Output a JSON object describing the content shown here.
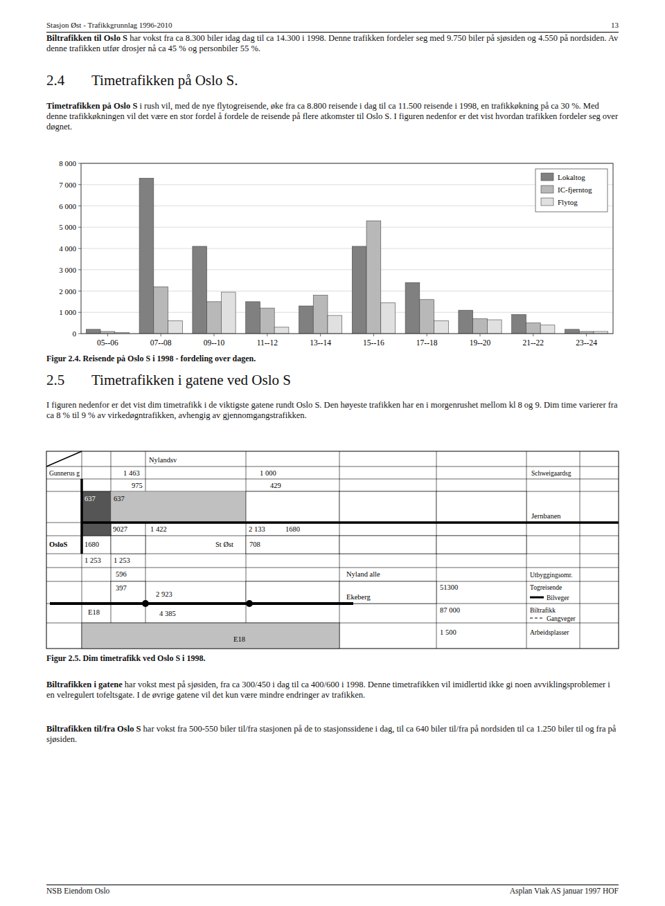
{
  "header_left": "Stasjon Øst  -  Trafikkgrunnlag 1996-2010",
  "header_right": "13",
  "paragraph_1": {
    "lead": "Biltrafikken til Oslo S",
    "text": " har vokst fra ca 8.300 biler idag dag til ca 14.300 i 1998. Denne trafikken fordeler seg med 9.750 biler på sjøsiden og 4.550 på nordsiden.  Av denne trafikken utfør drosjer nå ca 45 % og personbiler 55 %."
  },
  "heading_2_4": {
    "number": "2.4",
    "title": "Timetrafikken på Oslo S."
  },
  "paragraph_2": {
    "lead": "Timetrafikken på Oslo S",
    "text": " i rush vil, med de nye flytogreisende, øke fra ca 8.800 reisende i dag til ca 11.500 reisende i 1998, en trafikkøkning på ca 30 %. Med denne trafikkøkningen vil det være en stor fordel å fordele de reisende på flere atkomster til Oslo S.  I figuren nedenfor er det vist hvordan trafikken fordeler seg over døgnet."
  },
  "chart_data": {
    "type": "bar",
    "title": "Figur 2.4.  Reisende på Oslo S i 1998 - fordeling over dagen.",
    "categories": [
      "05--06",
      "07--08",
      "09--10",
      "11--12",
      "13--14",
      "15--16",
      "17--18",
      "19--20",
      "21--22",
      "23--24"
    ],
    "series": [
      {
        "name": "Lokaltog",
        "color": "#808080",
        "values": [
          200,
          7300,
          4100,
          1500,
          1300,
          4100,
          2400,
          1100,
          900,
          200
        ]
      },
      {
        "name": "IC-fjerntog",
        "color": "#b8b8b8",
        "values": [
          100,
          2200,
          1500,
          1200,
          1800,
          5300,
          1600,
          700,
          500,
          100
        ]
      },
      {
        "name": "Flytog",
        "color": "#e0e0e0",
        "values": [
          50,
          600,
          1950,
          300,
          850,
          1450,
          600,
          650,
          400,
          100
        ]
      }
    ],
    "ylim": [
      0,
      8000
    ],
    "yticks": [
      0,
      {
        "value": 1000,
        "label": "1 000"
      },
      {
        "value": 2000,
        "label": "2 000"
      },
      {
        "value": 3000,
        "label": "3 000"
      },
      {
        "value": 4000,
        "label": "4 000"
      },
      {
        "value": 5000,
        "label": "5 000"
      },
      {
        "value": 6000,
        "label": "6 000"
      },
      {
        "value": 7000,
        "label": "7 000"
      },
      {
        "value": 8000,
        "label": "8 000"
      }
    ],
    "grid": true,
    "legend": "upper right"
  },
  "heading_2_5": {
    "number": "2.5",
    "title": "Timetrafikken i gatene ved Oslo S"
  },
  "paragraph_3": {
    "text": "I figuren nedenfor er det vist dim timetrafikk i de viktigste gatene rundt Oslo S.  Den høyeste trafikken har en i morgenrushet mellom kl 8 og 9.  Dim time varierer fra ca 8 % til 9 % av virkedøgntrafikken, avhengig av gjennomgangstrafikken."
  },
  "figure_2_5": {
    "caption": "Figur 2.5.  Dim timetrafikk ved Oslo S i 1998.",
    "labels": {
      "nylandsv": "Nylandsv",
      "gunnerus": "Gunnerus g",
      "v1463": "1 463",
      "v1000": "1 000",
      "schweigaard": "Schweigaardsg",
      "v975": "975",
      "v429": "429",
      "v637a": "637",
      "v637b": "637",
      "v9027": "9027",
      "v1422": "1 422",
      "v2133": "2 133",
      "v1680a": "1680",
      "jernbanen": "Jernbanen",
      "oslos": "OsloS",
      "v1680b": "1680",
      "st_ost": "St Øst",
      "v708": "708",
      "v1253a": "1 253",
      "v1253b": "1 253",
      "v596": "596",
      "nyland_alle": "Nyland alle",
      "utbygg": "Utbyggingsomr.",
      "v51300": "51300",
      "togreisende": "Togreisende",
      "bilveger": "Bilveger",
      "v397": "397",
      "v2923": "2 923",
      "ekeberg": "Ekeberg",
      "v87000": "87 000",
      "biltrafikk": "Biltrafikk",
      "e18a": "E18",
      "v4385": "4 385",
      "gangveger": "Gangveger",
      "v1500": "1 500",
      "arbeidsplasser": "Arbeidsplasser",
      "e18b": "E18"
    }
  },
  "paragraph_4": {
    "lead": "Biltrafikken i gatene",
    "text": " har vokst mest på sjøsiden, fra ca 300/450 i dag til ca 400/600 i 1998. Denne timetrafikken vil imidlertid ikke gi noen avviklingsproblemer i en velregulert tofeltsgate. I de øvrige gatene vil det kun være mindre endringer av trafikken."
  },
  "paragraph_5": {
    "lead": "Biltrafikken til/fra Oslo S",
    "text": " har vokst fra 500-550 biler til/fra stasjonen på de to stasjonssidene i dag, til ca 640 biler til/fra på nordsiden til ca 1.250 biler til og fra på sjøsiden."
  },
  "footer_left": "NSB Eiendom Oslo",
  "footer_right": "Asplan Viak AS januar 1997  HOF"
}
